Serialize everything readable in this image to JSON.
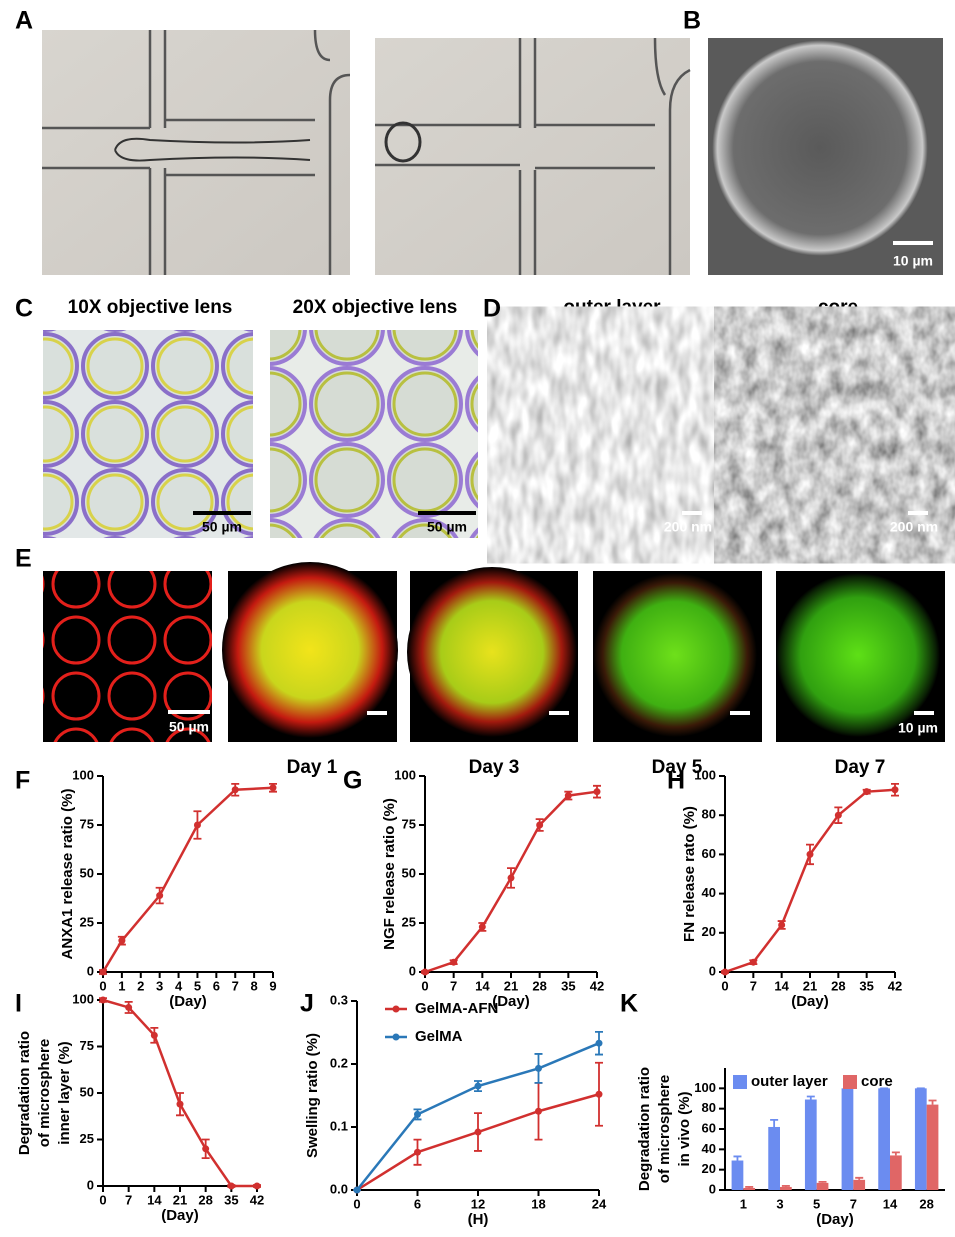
{
  "panel_labels": [
    "A",
    "B",
    "C",
    "D",
    "E",
    "F",
    "G",
    "H",
    "I",
    "J",
    "K"
  ],
  "images": {
    "b_scale": "10 µm",
    "c_titles": [
      "10X objective lens",
      "20X objective lens"
    ],
    "c_scales": [
      "50 µm",
      "50 µm"
    ],
    "d_titles": [
      "outer layer",
      "core"
    ],
    "d_scales": [
      "200 nm",
      "200 nm"
    ],
    "e_scale_first": "50 µm",
    "e_days": [
      "Day 1",
      "Day 3",
      "Day 5",
      "Day 7"
    ],
    "e_scale_last": "10 µm"
  },
  "chart_data": [
    {
      "type": "line",
      "y_label": [
        "ANXA1 release ratio (%)"
      ],
      "x_label": "(Day)",
      "x": [
        0,
        1,
        3,
        5,
        7,
        9
      ],
      "xlim": [
        0,
        9
      ],
      "xticks": [
        0,
        1,
        2,
        3,
        4,
        5,
        6,
        7,
        8,
        9
      ],
      "ylim": [
        0,
        100
      ],
      "yticks": [
        0,
        25,
        50,
        75,
        100
      ],
      "series": [
        {
          "color": "#d1302f",
          "values": [
            0,
            16,
            39,
            75,
            93,
            94
          ],
          "errors": [
            1,
            2,
            4,
            7,
            3,
            2
          ]
        }
      ]
    },
    {
      "type": "line",
      "y_label": [
        "NGF release ratio (%)"
      ],
      "x_label": "(Day)",
      "x": [
        0,
        7,
        14,
        21,
        28,
        35,
        42
      ],
      "xlim": [
        0,
        42
      ],
      "xticks": [
        0,
        7,
        14,
        21,
        28,
        35,
        42
      ],
      "ylim": [
        0,
        100
      ],
      "yticks": [
        0,
        25,
        50,
        75,
        100
      ],
      "series": [
        {
          "color": "#d1302f",
          "values": [
            0,
            5,
            23,
            48,
            75,
            90,
            92
          ],
          "errors": [
            0.5,
            1,
            2,
            5,
            3,
            2,
            3
          ]
        }
      ]
    },
    {
      "type": "line",
      "y_label": [
        "FN release rato (%)"
      ],
      "x_label": "(Day)",
      "x": [
        0,
        7,
        14,
        21,
        28,
        35,
        42
      ],
      "xlim": [
        0,
        42
      ],
      "xticks": [
        0,
        7,
        14,
        21,
        28,
        35,
        42
      ],
      "ylim": [
        0,
        100
      ],
      "yticks": [
        0,
        20,
        40,
        60,
        80,
        100
      ],
      "series": [
        {
          "color": "#d1302f",
          "values": [
            0,
            5,
            24,
            60,
            80,
            92,
            93
          ],
          "errors": [
            0.5,
            1,
            2,
            5,
            4,
            1,
            3
          ]
        }
      ]
    },
    {
      "type": "line",
      "y_label": [
        "Degradation ratio",
        "of microsphere",
        "inner layer (%)"
      ],
      "x_label": "(Day)",
      "x": [
        0,
        7,
        14,
        21,
        28,
        35,
        42
      ],
      "xlim": [
        0,
        42
      ],
      "xticks": [
        0,
        7,
        14,
        21,
        28,
        35,
        42
      ],
      "ylim": [
        0,
        100
      ],
      "yticks": [
        0,
        25,
        50,
        75,
        100
      ],
      "series": [
        {
          "color": "#d1302f",
          "values": [
            100,
            96,
            81,
            44,
            20,
            0,
            0
          ],
          "errors": [
            1,
            3,
            4,
            6,
            5,
            0.5,
            0.5
          ]
        }
      ]
    },
    {
      "type": "line",
      "y_label": [
        "Swelling ratio (%)"
      ],
      "x_label": "(H)",
      "legend": "top-left",
      "x": [
        0,
        6,
        12,
        18,
        24
      ],
      "xlim": [
        0,
        24
      ],
      "xticks": [
        0,
        6,
        12,
        18,
        24
      ],
      "ylim": [
        0,
        0.3
      ],
      "yticks": [
        {
          "value": 0,
          "label": "0.0"
        },
        0.1,
        0.2,
        0.3
      ],
      "series": [
        {
          "name": "GelMA-AFN",
          "color": "#d1302f",
          "values": [
            0,
            0.06,
            0.092,
            0.125,
            0.152
          ],
          "errors": [
            0,
            0.02,
            0.03,
            0.045,
            0.05
          ]
        },
        {
          "name": "GelMA",
          "color": "#2a78b8",
          "values": [
            0,
            0.12,
            0.165,
            0.193,
            0.233
          ],
          "errors": [
            0,
            0.008,
            0.008,
            0.023,
            0.018
          ]
        }
      ]
    },
    {
      "type": "bar",
      "y_label": [
        "Degradation ratio",
        "of microsphere",
        "in vivo (%)"
      ],
      "x_label": "(Day)",
      "legend": "top",
      "categories": [
        "1",
        "3",
        "5",
        "7",
        "14",
        "28"
      ],
      "ylim": [
        0,
        120
      ],
      "yticks": [
        0,
        20,
        40,
        60,
        80,
        100
      ],
      "series": [
        {
          "name": "outer layer",
          "color": "#6b8cf0",
          "values": [
            29,
            62,
            89,
            100,
            100,
            100
          ],
          "errors": [
            4,
            7,
            3,
            0,
            0,
            0
          ]
        },
        {
          "name": "core",
          "color": "#e06666",
          "values": [
            2,
            3,
            7,
            10,
            34,
            84
          ],
          "errors": [
            1,
            1,
            1,
            2,
            3,
            4
          ]
        }
      ]
    }
  ]
}
